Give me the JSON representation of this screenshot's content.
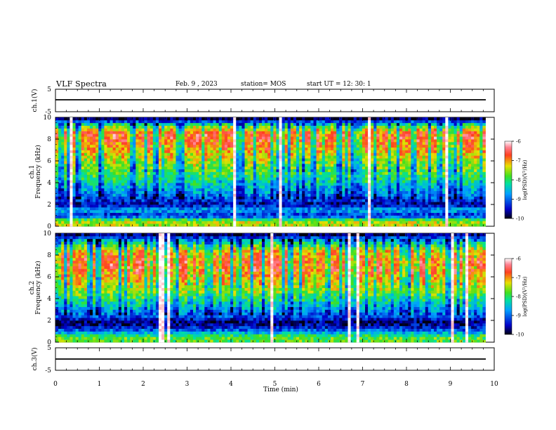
{
  "header": {
    "title": "VLF Spectra",
    "date": "Feb. 9 , 2023",
    "station": "station= MOS",
    "start": "start UT =  12: 30: 1"
  },
  "chart_data": [
    {
      "type": "line",
      "panel": "ch1-waveform",
      "ylabel": "ch.1(V)",
      "ylim": [
        -5,
        5
      ],
      "yticks": [
        "5",
        "-5"
      ],
      "x": [
        0,
        9.8
      ],
      "series": [
        {
          "values": [
            -0.4,
            -0.4
          ]
        }
      ]
    },
    {
      "type": "heatmap",
      "panel": "ch1-spectrogram",
      "ylabel": "ch.1\nFrequency (kHz)",
      "ylim": [
        0,
        10
      ],
      "yticks": [
        "0",
        "2",
        "4",
        "6",
        "8",
        "10"
      ],
      "xlim": [
        0,
        10
      ],
      "data_x_extent": [
        0,
        9.8
      ],
      "colorbar": {
        "label": "log(PSD)(V²/Hz)",
        "range": [
          -10,
          -6
        ],
        "ticks": [
          "-6",
          "-7",
          "-8",
          "-9",
          "-10"
        ]
      },
      "profile": [
        {
          "f": 0.5,
          "logpsd": -7.5
        },
        {
          "f": 1.0,
          "logpsd": -9.4
        },
        {
          "f": 1.5,
          "logpsd": -8.6
        },
        {
          "f": 2.0,
          "logpsd": -9.6
        },
        {
          "f": 3.0,
          "logpsd": -8.8
        },
        {
          "f": 4.5,
          "logpsd": -8.0
        },
        {
          "f": 6.0,
          "logpsd": -7.5
        },
        {
          "f": 7.5,
          "logpsd": -6.9
        },
        {
          "f": 8.5,
          "logpsd": -6.7
        },
        {
          "f": 9.3,
          "logpsd": -7.9
        },
        {
          "f": 9.8,
          "logpsd": -9.8
        }
      ]
    },
    {
      "type": "heatmap",
      "panel": "ch2-spectrogram",
      "ylabel": "ch.2\nFrequency (kHz)",
      "ylim": [
        0,
        10
      ],
      "yticks": [
        "0",
        "2",
        "4",
        "6",
        "8",
        "10"
      ],
      "xlim": [
        0,
        10
      ],
      "data_x_extent": [
        0,
        9.8
      ],
      "colorbar": {
        "label": "log(PSD)(V²/Hz)",
        "range": [
          -10,
          -6
        ],
        "ticks": [
          "-6",
          "-7",
          "-8",
          "-9",
          "-10"
        ]
      },
      "profile": [
        {
          "f": 0.5,
          "logpsd": -7.8
        },
        {
          "f": 1.2,
          "logpsd": -9.2
        },
        {
          "f": 1.8,
          "logpsd": -9.8
        },
        {
          "f": 2.5,
          "logpsd": -9.0
        },
        {
          "f": 3.5,
          "logpsd": -8.3
        },
        {
          "f": 5.0,
          "logpsd": -7.4
        },
        {
          "f": 6.5,
          "logpsd": -6.8
        },
        {
          "f": 7.5,
          "logpsd": -6.7
        },
        {
          "f": 8.5,
          "logpsd": -7.2
        },
        {
          "f": 9.3,
          "logpsd": -8.4
        },
        {
          "f": 9.8,
          "logpsd": -9.7
        }
      ]
    },
    {
      "type": "line",
      "panel": "ch3-waveform",
      "ylabel": "ch.3(V)",
      "ylim": [
        -5,
        5
      ],
      "yticks": [
        "5",
        "-5"
      ],
      "x": [
        0,
        9.8
      ],
      "series": [
        {
          "values": [
            -0.4,
            -0.4
          ]
        }
      ]
    }
  ],
  "xaxis": {
    "label": "Time (min)",
    "range": [
      0,
      10
    ],
    "ticks": [
      "0",
      "1",
      "2",
      "3",
      "4",
      "5",
      "6",
      "7",
      "8",
      "9",
      "10"
    ]
  }
}
